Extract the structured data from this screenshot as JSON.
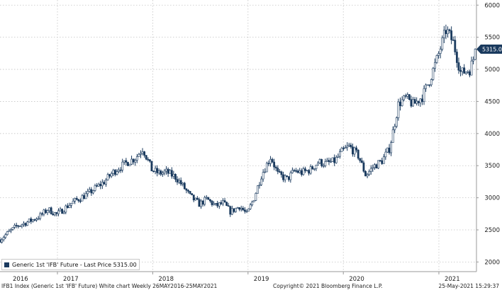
{
  "chart_data": {
    "type": "candlestick",
    "title": "",
    "xlabel": "",
    "ylabel": "",
    "x_ticks": [
      "2016",
      "2017",
      "2018",
      "2019",
      "2020",
      "2021"
    ],
    "y_ticks": [
      2000,
      2500,
      3000,
      3500,
      4000,
      4500,
      5000,
      5500,
      6000
    ],
    "ylim": [
      1850,
      6080
    ],
    "xlim": [
      "2016-05-26",
      "2021-05-25"
    ],
    "grid": true,
    "y_axis_side": "right",
    "legend_placement": "bottom-left",
    "series": [
      {
        "name": "Generic 1st 'IFB' Future - Last Price 5315.00",
        "color": "#1a3a5e",
        "points": [
          [
            "2016-05-27",
            2350
          ],
          [
            "2016-06-24",
            2450
          ],
          [
            "2016-07-29",
            2560
          ],
          [
            "2016-08-26",
            2600
          ],
          [
            "2016-09-30",
            2660
          ],
          [
            "2016-10-28",
            2720
          ],
          [
            "2016-11-25",
            2820
          ],
          [
            "2016-12-30",
            2740
          ],
          [
            "2017-01-27",
            2830
          ],
          [
            "2017-02-24",
            2920
          ],
          [
            "2017-03-31",
            3000
          ],
          [
            "2017-04-28",
            3060
          ],
          [
            "2017-05-26",
            3150
          ],
          [
            "2017-06-30",
            3250
          ],
          [
            "2017-07-28",
            3380
          ],
          [
            "2017-08-25",
            3470
          ],
          [
            "2017-09-29",
            3560
          ],
          [
            "2017-10-27",
            3620
          ],
          [
            "2017-11-24",
            3770
          ],
          [
            "2017-12-29",
            3430
          ],
          [
            "2018-01-26",
            3380
          ],
          [
            "2018-02-23",
            3400
          ],
          [
            "2018-03-30",
            3320
          ],
          [
            "2018-04-27",
            3180
          ],
          [
            "2018-05-25",
            3020
          ],
          [
            "2018-06-29",
            2900
          ],
          [
            "2018-07-27",
            2980
          ],
          [
            "2018-08-31",
            2870
          ],
          [
            "2018-09-28",
            2920
          ],
          [
            "2018-10-26",
            2780
          ],
          [
            "2018-11-30",
            2870
          ],
          [
            "2018-12-28",
            2740
          ],
          [
            "2019-01-25",
            3010
          ],
          [
            "2019-02-22",
            3360
          ],
          [
            "2019-03-29",
            3640
          ],
          [
            "2019-04-26",
            3360
          ],
          [
            "2019-05-31",
            3290
          ],
          [
            "2019-06-28",
            3420
          ],
          [
            "2019-07-26",
            3390
          ],
          [
            "2019-08-30",
            3440
          ],
          [
            "2019-09-27",
            3560
          ],
          [
            "2019-10-25",
            3530
          ],
          [
            "2019-11-29",
            3570
          ],
          [
            "2019-12-27",
            3720
          ],
          [
            "2020-01-24",
            3800
          ],
          [
            "2020-02-28",
            3650
          ],
          [
            "2020-03-27",
            3350
          ],
          [
            "2020-04-24",
            3480
          ],
          [
            "2020-05-29",
            3580
          ],
          [
            "2020-06-26",
            3770
          ],
          [
            "2020-07-31",
            4470
          ],
          [
            "2020-08-28",
            4550
          ],
          [
            "2020-09-25",
            4450
          ],
          [
            "2020-10-30",
            4580
          ],
          [
            "2020-11-27",
            4840
          ],
          [
            "2020-12-25",
            5160
          ],
          [
            "2021-01-29",
            5620
          ],
          [
            "2021-02-26",
            5410
          ],
          [
            "2021-03-26",
            4940
          ],
          [
            "2021-04-30",
            5000
          ],
          [
            "2021-05-25",
            5315
          ]
        ]
      }
    ],
    "last_price_label": "5315.00",
    "accent_color": "#1a3a5e"
  },
  "footer": {
    "left": "IFB1 Index (Generic 1st 'IFB' Future) White chart  Weekly 26MAY2016-25MAY2021",
    "center": "Copyright© 2021 Bloomberg Finance L.P.",
    "right": "25-May-2021 15:29:37"
  }
}
